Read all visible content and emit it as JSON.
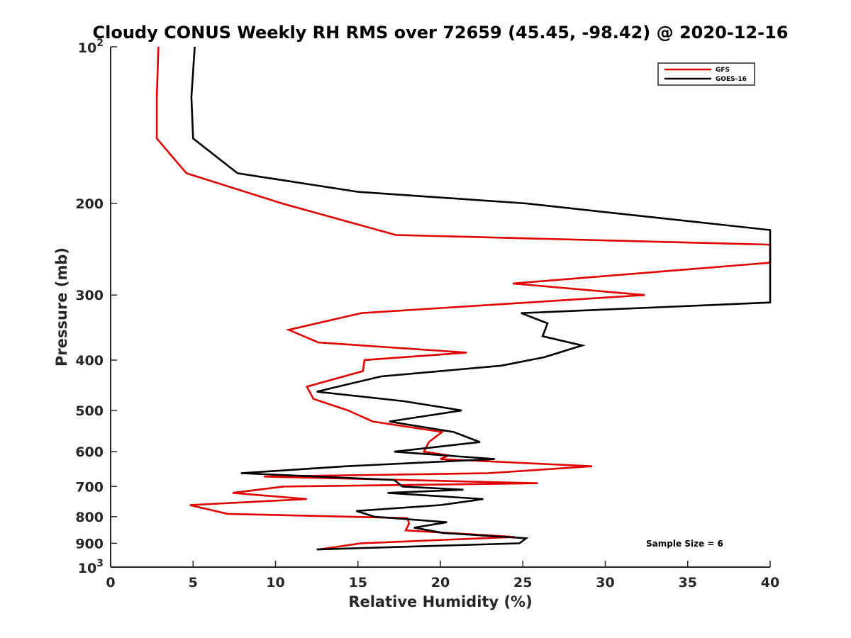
{
  "chart_data": {
    "type": "line",
    "title": "Cloudy CONUS Weekly RH RMS over 72659 (45.45, -98.42) @ 2020-12-16",
    "xlabel": "Relative Humidity (%)",
    "ylabel": "Pressure (mb)",
    "xlim": [
      0,
      40
    ],
    "ylim": [
      1000,
      100
    ],
    "y_scale": "log",
    "y_reversed": true,
    "grid": false,
    "legend_position": "top-right",
    "x_ticks": [
      {
        "value": 0,
        "label": "0"
      },
      {
        "value": 5,
        "label": "5"
      },
      {
        "value": 10,
        "label": "10"
      },
      {
        "value": 15,
        "label": "15"
      },
      {
        "value": 20,
        "label": "20"
      },
      {
        "value": 25,
        "label": "25"
      },
      {
        "value": 30,
        "label": "30"
      },
      {
        "value": 35,
        "label": "35"
      },
      {
        "value": 40,
        "label": "40"
      }
    ],
    "y_ticks": [
      {
        "value": 100,
        "label": "10",
        "sup": "2"
      },
      {
        "value": 200,
        "label": "200"
      },
      {
        "value": 300,
        "label": "300"
      },
      {
        "value": 400,
        "label": "400"
      },
      {
        "value": 500,
        "label": "500"
      },
      {
        "value": 600,
        "label": "600"
      },
      {
        "value": 700,
        "label": "700"
      },
      {
        "value": 800,
        "label": "800"
      },
      {
        "value": 900,
        "label": "900"
      },
      {
        "value": 1000,
        "label": "10",
        "sup": "3"
      }
    ],
    "annotation": "Sample Size = 6",
    "series": [
      {
        "name": "GFS",
        "color": "#e00000",
        "points": [
          [
            2.9,
            100
          ],
          [
            2.8,
            125
          ],
          [
            2.8,
            150
          ],
          [
            4.6,
            175
          ],
          [
            10.4,
            200
          ],
          [
            17.3,
            230
          ],
          [
            40,
            240
          ],
          [
            40,
            260
          ],
          [
            24.4,
            285
          ],
          [
            32.4,
            300
          ],
          [
            15.2,
            325
          ],
          [
            10.8,
            350
          ],
          [
            12.6,
            370
          ],
          [
            21.6,
            387
          ],
          [
            15.4,
            400
          ],
          [
            15.3,
            420
          ],
          [
            11.9,
            450
          ],
          [
            12.3,
            475
          ],
          [
            14.4,
            500
          ],
          [
            15.9,
            525
          ],
          [
            20.1,
            550
          ],
          [
            19.3,
            575
          ],
          [
            19.0,
            600
          ],
          [
            20.5,
            610
          ],
          [
            20.0,
            620
          ],
          [
            29.2,
            640
          ],
          [
            22.9,
            660
          ],
          [
            9.3,
            670
          ],
          [
            25.9,
            690
          ],
          [
            10.5,
            700
          ],
          [
            7.4,
            720
          ],
          [
            11.9,
            740
          ],
          [
            4.8,
            760
          ],
          [
            7.1,
            790
          ],
          [
            18.0,
            805
          ],
          [
            18.1,
            825
          ],
          [
            17.9,
            850
          ],
          [
            24.5,
            875
          ],
          [
            15.2,
            900
          ],
          [
            12.6,
            925
          ]
        ]
      },
      {
        "name": "GOES-16",
        "color": "#000000",
        "points": [
          [
            5.1,
            100
          ],
          [
            4.9,
            125
          ],
          [
            5.0,
            150
          ],
          [
            7.7,
            175
          ],
          [
            15.0,
            190
          ],
          [
            25.2,
            200
          ],
          [
            40,
            225
          ],
          [
            40,
            310
          ],
          [
            24.9,
            325
          ],
          [
            26.5,
            340
          ],
          [
            26.2,
            360
          ],
          [
            28.6,
            375
          ],
          [
            26.3,
            395
          ],
          [
            23.7,
            410
          ],
          [
            16.4,
            430
          ],
          [
            12.5,
            460
          ],
          [
            17.8,
            480
          ],
          [
            21.3,
            500
          ],
          [
            16.9,
            525
          ],
          [
            20.8,
            550
          ],
          [
            22.4,
            575
          ],
          [
            17.2,
            600
          ],
          [
            23.3,
            620
          ],
          [
            14.3,
            640
          ],
          [
            7.9,
            660
          ],
          [
            17.2,
            680
          ],
          [
            17.7,
            700
          ],
          [
            21.4,
            710
          ],
          [
            16.8,
            720
          ],
          [
            22.6,
            740
          ],
          [
            20.0,
            760
          ],
          [
            14.9,
            780
          ],
          [
            16.0,
            800
          ],
          [
            20.4,
            820
          ],
          [
            18.4,
            840
          ],
          [
            20.2,
            860
          ],
          [
            25.2,
            880
          ],
          [
            24.8,
            900
          ],
          [
            12.5,
            925
          ]
        ]
      }
    ]
  }
}
